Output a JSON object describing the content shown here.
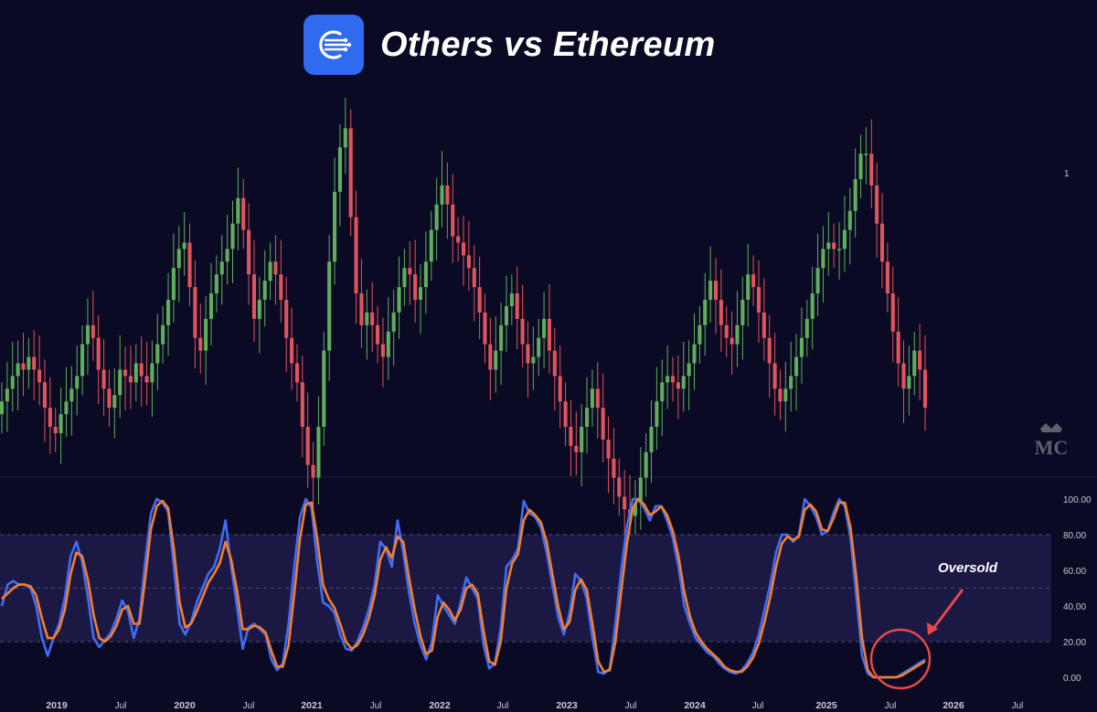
{
  "header": {
    "title": "Others vs Ethereum",
    "logo_icon": "network-circle-icon"
  },
  "watermark": {
    "text": "MC",
    "icon": "crown-icon"
  },
  "colors": {
    "background": "#0b0a24",
    "candle_up": "#5fae5b",
    "candle_down": "#e0545e",
    "k_line": "#3f6df6",
    "d_line": "#f37f2c",
    "band": "#1b1944",
    "annotation": "#e84848"
  },
  "chart_data": [
    {
      "type": "candlestick",
      "interval": "weekly",
      "x_range": [
        "2018-12",
        "2025-10"
      ],
      "y_axis_labels": [
        "1"
      ],
      "close_series": [
        0.64,
        0.66,
        0.68,
        0.7,
        0.69,
        0.71,
        0.69,
        0.67,
        0.63,
        0.6,
        0.59,
        0.62,
        0.64,
        0.66,
        0.68,
        0.73,
        0.76,
        0.74,
        0.69,
        0.66,
        0.63,
        0.65,
        0.69,
        0.68,
        0.67,
        0.7,
        0.68,
        0.67,
        0.7,
        0.73,
        0.76,
        0.8,
        0.85,
        0.88,
        0.89,
        0.82,
        0.74,
        0.72,
        0.77,
        0.81,
        0.84,
        0.86,
        0.88,
        0.92,
        0.96,
        0.91,
        0.84,
        0.77,
        0.8,
        0.83,
        0.86,
        0.84,
        0.8,
        0.74,
        0.7,
        0.67,
        0.6,
        0.54,
        0.52,
        0.6,
        0.72,
        0.86,
        0.97,
        1.04,
        1.07,
        0.93,
        0.81,
        0.76,
        0.78,
        0.76,
        0.73,
        0.71,
        0.75,
        0.78,
        0.82,
        0.85,
        0.84,
        0.8,
        0.82,
        0.86,
        0.91,
        0.95,
        0.98,
        0.95,
        0.9,
        0.89,
        0.87,
        0.85,
        0.82,
        0.78,
        0.73,
        0.69,
        0.72,
        0.76,
        0.79,
        0.81,
        0.77,
        0.73,
        0.7,
        0.71,
        0.74,
        0.77,
        0.72,
        0.68,
        0.64,
        0.6,
        0.57,
        0.56,
        0.6,
        0.63,
        0.66,
        0.63,
        0.58,
        0.55,
        0.52,
        0.49,
        0.47,
        0.46,
        0.48,
        0.52,
        0.56,
        0.6,
        0.64,
        0.67,
        0.68,
        0.67,
        0.66,
        0.68,
        0.7,
        0.73,
        0.76,
        0.8,
        0.83,
        0.8,
        0.76,
        0.74,
        0.73,
        0.76,
        0.8,
        0.84,
        0.82,
        0.78,
        0.74,
        0.7,
        0.66,
        0.64,
        0.66,
        0.68,
        0.71,
        0.74,
        0.77,
        0.81,
        0.85,
        0.88,
        0.89,
        0.88,
        0.88,
        0.91,
        0.94,
        0.99,
        1.03,
        1.03,
        0.98,
        0.92,
        0.86,
        0.81,
        0.75,
        0.7,
        0.66,
        0.68,
        0.72,
        0.69,
        0.63
      ]
    },
    {
      "type": "line",
      "x_range": [
        "2018-12",
        "2025-10"
      ],
      "ylim": [
        0,
        100
      ],
      "y_ticks": [
        "100.00",
        "80.00",
        "60.00",
        "40.00",
        "20.00",
        "0.00"
      ],
      "band": [
        20,
        80
      ],
      "series": [
        {
          "values": [
            40,
            52,
            54,
            52,
            52,
            50,
            40,
            22,
            12,
            22,
            30,
            45,
            68,
            76,
            65,
            45,
            22,
            17,
            21,
            25,
            33,
            43,
            37,
            22,
            33,
            65,
            92,
            100,
            98,
            93,
            62,
            30,
            24,
            31,
            42,
            50,
            58,
            62,
            72,
            88,
            62,
            40,
            16,
            28,
            30,
            27,
            24,
            10,
            4,
            8,
            30,
            62,
            90,
            100,
            95,
            65,
            42,
            40,
            36,
            24,
            16,
            15,
            20,
            28,
            38,
            52,
            76,
            72,
            62,
            88,
            70,
            48,
            30,
            18,
            10,
            20,
            46,
            40,
            35,
            30,
            42,
            56,
            50,
            44,
            18,
            5,
            8,
            28,
            62,
            66,
            72,
            99,
            92,
            90,
            84,
            70,
            52,
            34,
            24,
            36,
            58,
            54,
            44,
            22,
            3,
            2,
            5,
            30,
            60,
            85,
            100,
            100,
            95,
            88,
            96,
            96,
            88,
            78,
            62,
            40,
            30,
            22,
            18,
            14,
            12,
            8,
            5,
            3,
            2,
            4,
            8,
            14,
            24,
            38,
            52,
            70,
            80,
            80,
            76,
            80,
            100,
            96,
            90,
            80,
            82,
            92,
            100,
            96,
            78,
            46,
            12,
            2,
            0,
            0,
            0,
            0,
            0,
            2,
            4,
            6,
            8,
            10
          ],
          "color": "#3f6df6"
        },
        {
          "values": [
            44,
            47,
            50,
            52,
            52,
            51,
            46,
            33,
            22,
            22,
            27,
            38,
            58,
            70,
            68,
            55,
            35,
            22,
            20,
            23,
            29,
            38,
            40,
            30,
            30,
            55,
            83,
            96,
            99,
            95,
            72,
            42,
            28,
            30,
            37,
            45,
            53,
            58,
            64,
            76,
            66,
            49,
            27,
            27,
            29,
            28,
            25,
            15,
            6,
            6,
            18,
            47,
            78,
            97,
            98,
            78,
            52,
            44,
            39,
            30,
            20,
            16,
            18,
            24,
            33,
            46,
            66,
            73,
            67,
            79,
            76,
            56,
            38,
            23,
            13,
            15,
            34,
            42,
            38,
            32,
            38,
            50,
            52,
            47,
            26,
            9,
            7,
            20,
            50,
            64,
            69,
            88,
            94,
            91,
            87,
            76,
            58,
            40,
            27,
            31,
            49,
            55,
            49,
            30,
            9,
            3,
            4,
            20,
            48,
            75,
            95,
            100,
            97,
            91,
            93,
            96,
            91,
            82,
            68,
            48,
            34,
            25,
            20,
            16,
            13,
            10,
            6,
            4,
            3,
            3,
            6,
            11,
            19,
            31,
            45,
            62,
            75,
            79,
            77,
            79,
            94,
            97,
            93,
            83,
            82,
            89,
            98,
            98,
            84,
            56,
            22,
            4,
            0,
            0,
            0,
            0,
            0,
            1,
            3,
            5,
            7,
            9
          ],
          "color": "#f37f2c"
        }
      ],
      "annotation": {
        "text": "Oversold",
        "color": "#e84848"
      }
    }
  ],
  "x_axis": {
    "labels": [
      {
        "text": "2019",
        "year": true
      },
      {
        "text": "Jul",
        "year": false
      },
      {
        "text": "2020",
        "year": true
      },
      {
        "text": "Jul",
        "year": false
      },
      {
        "text": "2021",
        "year": true
      },
      {
        "text": "Jul",
        "year": false
      },
      {
        "text": "2022",
        "year": true
      },
      {
        "text": "Jul",
        "year": false
      },
      {
        "text": "2023",
        "year": true
      },
      {
        "text": "Jul",
        "year": false
      },
      {
        "text": "2024",
        "year": true
      },
      {
        "text": "Jul",
        "year": false
      },
      {
        "text": "2025",
        "year": true
      },
      {
        "text": "Jul",
        "year": false
      },
      {
        "text": "2026",
        "year": true
      },
      {
        "text": "Jul",
        "year": false
      }
    ]
  }
}
